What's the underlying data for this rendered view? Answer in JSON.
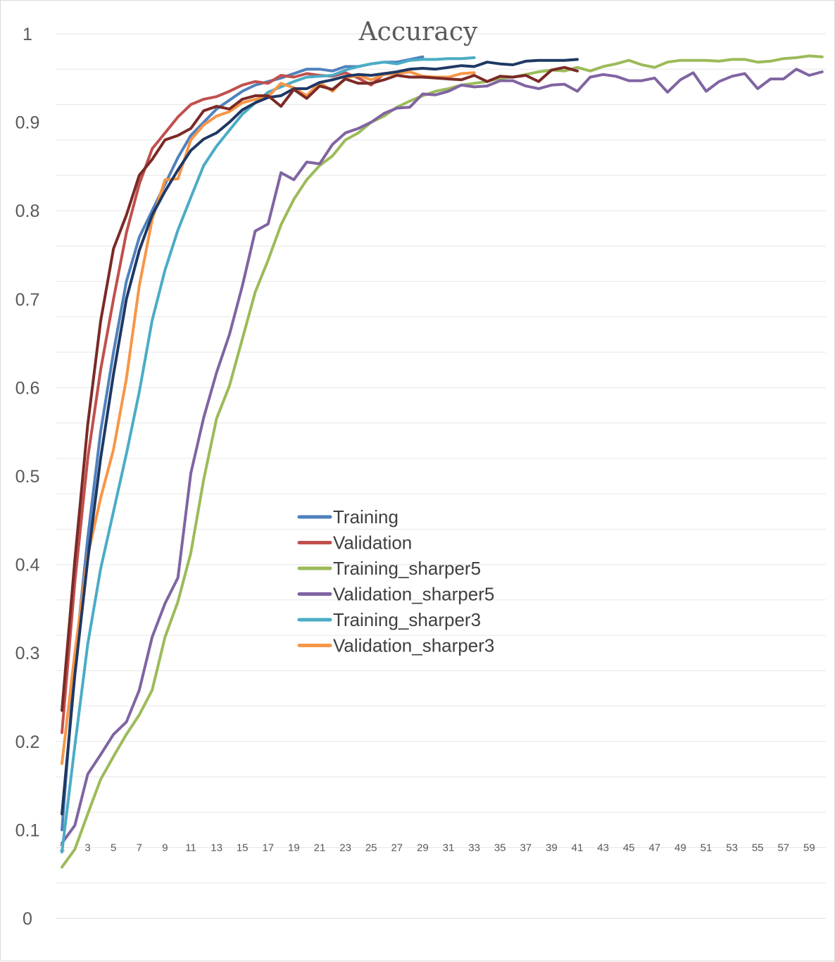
{
  "chart_data": {
    "type": "line",
    "title": "Accuracy",
    "xlabel": "",
    "ylabel": "",
    "ylim": [
      0,
      1
    ],
    "xlim": [
      1,
      60
    ],
    "yticks": [
      "0",
      "0.1",
      "0.2",
      "0.3",
      "0.4",
      "0.5",
      "0.6",
      "0.7",
      "0.8",
      "0.9",
      "1"
    ],
    "xticks": [
      1,
      3,
      5,
      7,
      9,
      11,
      13,
      15,
      17,
      19,
      21,
      23,
      25,
      27,
      29,
      31,
      33,
      35,
      37,
      39,
      41,
      43,
      45,
      47,
      49,
      51,
      53,
      55,
      57,
      59
    ],
    "grid": true,
    "legend_position": "center",
    "series": [
      {
        "name": "Training",
        "color": "#4f81bd",
        "legend": true,
        "values": [
          0.1,
          0.29,
          0.43,
          0.55,
          0.64,
          0.72,
          0.77,
          0.8,
          0.83,
          0.86,
          0.885,
          0.9,
          0.915,
          0.925,
          0.935,
          0.942,
          0.946,
          0.95,
          0.955,
          0.96,
          0.96,
          0.958,
          0.963,
          0.963,
          0.966,
          0.968,
          0.968,
          0.971,
          0.974
        ]
      },
      {
        "name": "Validation",
        "color": "#c0504d",
        "legend": true,
        "values": [
          0.21,
          0.38,
          0.52,
          0.62,
          0.7,
          0.775,
          0.83,
          0.87,
          0.888,
          0.906,
          0.92,
          0.926,
          0.929,
          0.935,
          0.942,
          0.946,
          0.944,
          0.953,
          0.951,
          0.955,
          0.953,
          0.952,
          0.956,
          0.95,
          0.942,
          0.955
        ]
      },
      {
        "name": "Training_sharper5",
        "color": "#9bbb59",
        "legend": true,
        "values": [
          0.058,
          0.078,
          0.118,
          0.157,
          0.183,
          0.208,
          0.23,
          0.258,
          0.318,
          0.358,
          0.413,
          0.496,
          0.565,
          0.602,
          0.655,
          0.708,
          0.744,
          0.784,
          0.813,
          0.835,
          0.851,
          0.862,
          0.88,
          0.888,
          0.9,
          0.907,
          0.917,
          0.924,
          0.93,
          0.935,
          0.938,
          0.942,
          0.944,
          0.946,
          0.95,
          0.951,
          0.954,
          0.957,
          0.959,
          0.958,
          0.962,
          0.958,
          0.963,
          0.966,
          0.97,
          0.965,
          0.962,
          0.968,
          0.97,
          0.97,
          0.97,
          0.969,
          0.971,
          0.971,
          0.968,
          0.969,
          0.972,
          0.973,
          0.975,
          0.974
        ]
      },
      {
        "name": "Validation_sharper5",
        "color": "#8064a2",
        "legend": true,
        "values": [
          0.085,
          0.105,
          0.163,
          0.185,
          0.208,
          0.222,
          0.258,
          0.318,
          0.356,
          0.385,
          0.503,
          0.566,
          0.617,
          0.66,
          0.715,
          0.777,
          0.785,
          0.843,
          0.835,
          0.855,
          0.853,
          0.875,
          0.888,
          0.893,
          0.9,
          0.91,
          0.916,
          0.917,
          0.932,
          0.931,
          0.935,
          0.942,
          0.94,
          0.941,
          0.947,
          0.947,
          0.941,
          0.938,
          0.942,
          0.943,
          0.935,
          0.951,
          0.954,
          0.952,
          0.947,
          0.947,
          0.95,
          0.934,
          0.948,
          0.956,
          0.935,
          0.946,
          0.952,
          0.955,
          0.938,
          0.949,
          0.949,
          0.96,
          0.953,
          0.957
        ]
      },
      {
        "name": "Training_sharper3",
        "color": "#4bacc6",
        "legend": true,
        "values": [
          0.075,
          0.195,
          0.31,
          0.395,
          0.46,
          0.525,
          0.595,
          0.676,
          0.733,
          0.778,
          0.815,
          0.851,
          0.873,
          0.891,
          0.909,
          0.922,
          0.934,
          0.94,
          0.946,
          0.951,
          0.952,
          0.953,
          0.959,
          0.963,
          0.966,
          0.968,
          0.966,
          0.97,
          0.971,
          0.971,
          0.972,
          0.972,
          0.973
        ]
      },
      {
        "name": "Validation_sharper3",
        "color": "#f79646",
        "legend": true,
        "values": [
          0.175,
          0.3,
          0.41,
          0.475,
          0.53,
          0.61,
          0.715,
          0.79,
          0.835,
          0.836,
          0.88,
          0.897,
          0.907,
          0.912,
          0.922,
          0.926,
          0.929,
          0.944,
          0.939,
          0.93,
          0.945,
          0.935,
          0.95,
          0.953,
          0.948,
          0.954,
          0.955,
          0.957,
          0.952,
          0.951,
          0.951,
          0.955,
          0.956
        ]
      },
      {
        "name": "",
        "color": "#1f3864",
        "legend": false,
        "values": [
          0.118,
          0.275,
          0.405,
          0.52,
          0.615,
          0.7,
          0.755,
          0.795,
          0.822,
          0.846,
          0.868,
          0.881,
          0.888,
          0.9,
          0.914,
          0.922,
          0.928,
          0.93,
          0.938,
          0.938,
          0.945,
          0.948,
          0.952,
          0.954,
          0.953,
          0.955,
          0.957,
          0.96,
          0.961,
          0.96,
          0.962,
          0.964,
          0.963,
          0.968,
          0.966,
          0.965,
          0.969,
          0.97,
          0.97,
          0.97,
          0.971
        ]
      },
      {
        "name": "",
        "color": "#7b2a27",
        "legend": false,
        "values": [
          0.235,
          0.405,
          0.558,
          0.675,
          0.757,
          0.795,
          0.84,
          0.858,
          0.88,
          0.885,
          0.893,
          0.913,
          0.918,
          0.915,
          0.926,
          0.93,
          0.93,
          0.918,
          0.937,
          0.927,
          0.941,
          0.937,
          0.949,
          0.944,
          0.944,
          0.948,
          0.953,
          0.951,
          0.951,
          0.95,
          0.949,
          0.948,
          0.953,
          0.946,
          0.952,
          0.951,
          0.953,
          0.946,
          0.959,
          0.962,
          0.958
        ]
      }
    ]
  }
}
